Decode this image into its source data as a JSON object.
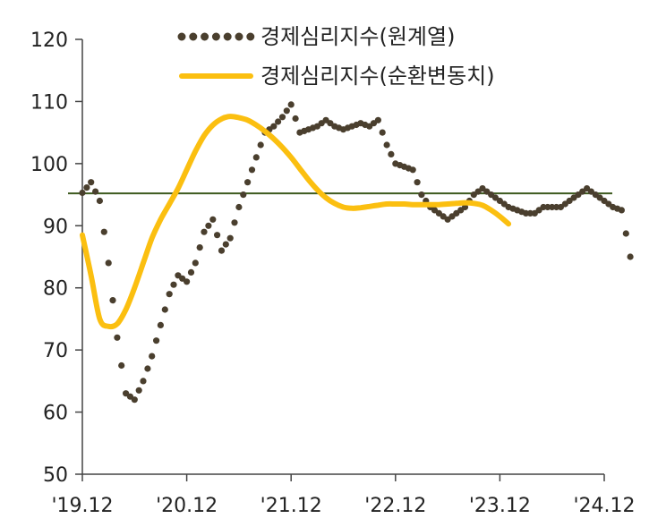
{
  "chart_data": {
    "type": "line",
    "title": "",
    "xlabel": "",
    "ylabel": "",
    "ylim": [
      50,
      120
    ],
    "yticks": [
      50,
      60,
      70,
      80,
      90,
      100,
      110,
      120
    ],
    "x_tick_labels": [
      "'19.12",
      "'20.12",
      "'21.12",
      "'22.12",
      "'23.12",
      "'24.12"
    ],
    "x_start": "2019-12",
    "x_end": "2024-12",
    "grid": false,
    "legend_position": "top-right",
    "reference_line": {
      "value": 95.2,
      "color": "#3d5a1e"
    },
    "series": [
      {
        "name": "경제심리지수(원계열)",
        "style": "dotted",
        "color": "#4a3f2e",
        "values": [
          95.3,
          97.0,
          94.0,
          84.0,
          72.0,
          63.0,
          62.0,
          65.0,
          69.0,
          74.0,
          79.0,
          82.0,
          81.0,
          84.0,
          89.0,
          91.0,
          86.0,
          88.0,
          93.0,
          97.0,
          101.0,
          105.0,
          106.0,
          107.5,
          109.5,
          105.0,
          105.5,
          106.0,
          107.0,
          106.0,
          105.5,
          106.0,
          106.5,
          106.0,
          107.0,
          103.0,
          100.0,
          99.5,
          99.0,
          95.0,
          93.0,
          92.0,
          91.0,
          92.0,
          93.0,
          95.0,
          96.0,
          95.0,
          94.0,
          93.0,
          92.5,
          92.0,
          92.0,
          93.0,
          93.0,
          93.0,
          94.0,
          95.0,
          96.0,
          95.0,
          94.0,
          93.0,
          92.5,
          85.0
        ]
      },
      {
        "name": "경제심리지수(순환변동치)",
        "style": "solid",
        "color": "#fbbf10",
        "values": [
          88.5,
          82.0,
          75.0,
          73.8,
          74.2,
          76.5,
          80.0,
          84.0,
          88.0,
          91.0,
          93.5,
          96.0,
          99.0,
          102.0,
          104.5,
          106.2,
          107.2,
          107.6,
          107.4,
          107.0,
          106.2,
          105.2,
          104.0,
          102.6,
          101.0,
          99.2,
          97.4,
          95.8,
          94.5,
          93.6,
          93.0,
          92.8,
          92.9,
          93.1,
          93.3,
          93.5,
          93.5,
          93.5,
          93.4,
          93.4,
          93.4,
          93.4,
          93.5,
          93.6,
          93.7,
          93.6,
          93.3,
          92.5,
          91.5,
          90.3
        ]
      }
    ]
  }
}
